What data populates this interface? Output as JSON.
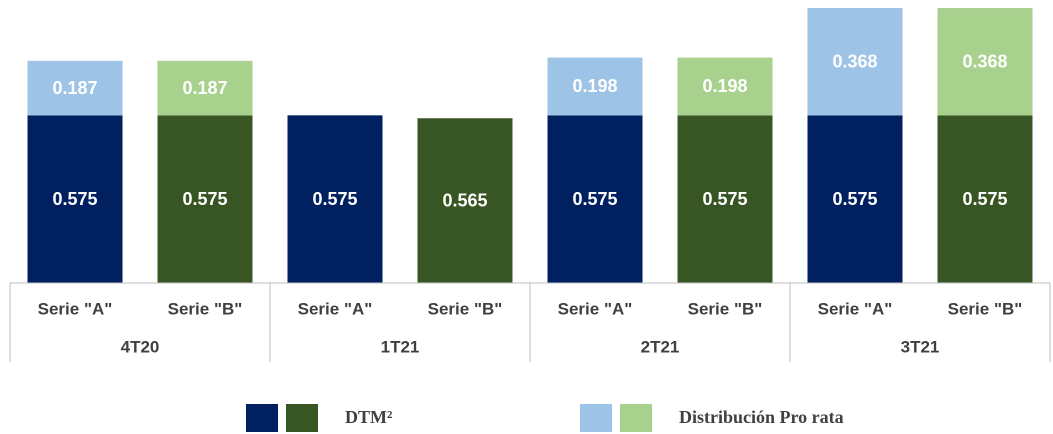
{
  "chart_data": {
    "type": "stacked-bar",
    "categories": [
      "Serie \"A\"",
      "Serie \"B\"",
      "Serie \"A\"",
      "Serie \"B\"",
      "Serie \"A\"",
      "Serie \"B\"",
      "Serie \"A\"",
      "Serie \"B\""
    ],
    "groups": [
      "4T20",
      "1T21",
      "2T21",
      "3T21"
    ],
    "series": [
      {
        "name": "DTM²",
        "colors": [
          "#002060",
          "#375623"
        ],
        "values": [
          0.575,
          0.575,
          0.575,
          0.565,
          0.575,
          0.575,
          0.575,
          0.575
        ]
      },
      {
        "name": "Distribución Pro rata",
        "colors": [
          "#9dc3e6",
          "#a9d18e"
        ],
        "values": [
          0.187,
          0.187,
          null,
          null,
          0.198,
          0.198,
          0.368,
          0.368
        ]
      }
    ],
    "ylim": [
      0,
      0.95
    ]
  }
}
